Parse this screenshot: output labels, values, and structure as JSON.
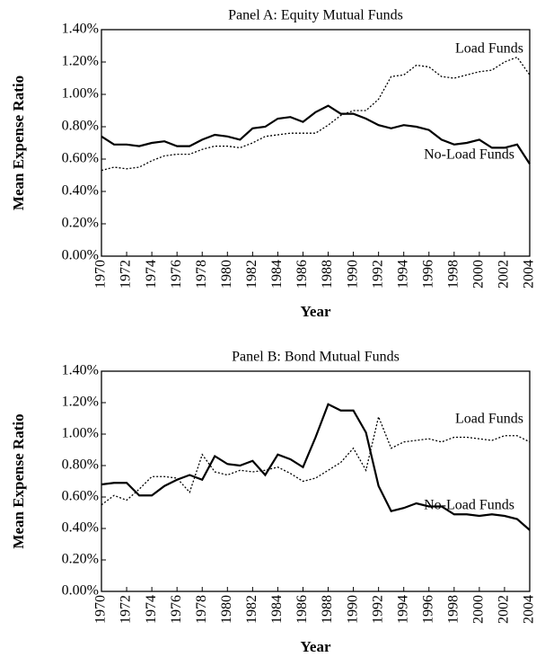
{
  "chart_data": [
    {
      "type": "line",
      "title": "Panel A: Equity Mutual Funds",
      "xlabel": "Year",
      "ylabel": "Mean Expense Ratio",
      "x": [
        1970,
        1971,
        1972,
        1973,
        1974,
        1975,
        1976,
        1977,
        1978,
        1979,
        1980,
        1981,
        1982,
        1983,
        1984,
        1985,
        1986,
        1987,
        1988,
        1989,
        1990,
        1991,
        1992,
        1993,
        1994,
        1995,
        1996,
        1997,
        1998,
        1999,
        2000,
        2001,
        2002,
        2003,
        2004
      ],
      "xlim": [
        1970,
        2004
      ],
      "xticks": [
        1970,
        1972,
        1974,
        1976,
        1978,
        1980,
        1982,
        1984,
        1986,
        1988,
        1990,
        1992,
        1994,
        1996,
        1998,
        2000,
        2002,
        2004
      ],
      "ylim": [
        0,
        1.4
      ],
      "yticks": [
        {
          "value": 0,
          "label": "0.00%"
        },
        {
          "value": 0.2,
          "label": "0.20%"
        },
        {
          "value": 0.4,
          "label": "0.40%"
        },
        {
          "value": 0.6,
          "label": "0.60%"
        },
        {
          "value": 0.8,
          "label": "0.80%"
        },
        {
          "value": 1.0,
          "label": "1.00%"
        },
        {
          "value": 1.2,
          "label": "1.20%"
        },
        {
          "value": 1.4,
          "label": "1.40%"
        }
      ],
      "series": [
        {
          "name": "Load Funds",
          "color": "#000000",
          "style": "dotted",
          "values": [
            0.53,
            0.55,
            0.54,
            0.55,
            0.59,
            0.62,
            0.63,
            0.63,
            0.66,
            0.68,
            0.68,
            0.67,
            0.7,
            0.74,
            0.75,
            0.76,
            0.76,
            0.76,
            0.81,
            0.87,
            0.9,
            0.9,
            0.97,
            1.11,
            1.12,
            1.18,
            1.17,
            1.11,
            1.1,
            1.12,
            1.14,
            1.15,
            1.2,
            1.23,
            1.12
          ]
        },
        {
          "name": "No-Load Funds",
          "color": "#000000",
          "style": "solid",
          "values": [
            0.74,
            0.69,
            0.69,
            0.68,
            0.7,
            0.71,
            0.68,
            0.68,
            0.72,
            0.75,
            0.74,
            0.72,
            0.79,
            0.8,
            0.85,
            0.86,
            0.83,
            0.89,
            0.93,
            0.88,
            0.88,
            0.85,
            0.81,
            0.79,
            0.81,
            0.8,
            0.78,
            0.72,
            0.69,
            0.7,
            0.72,
            0.67,
            0.67,
            0.69,
            0.57
          ]
        }
      ]
    },
    {
      "type": "line",
      "title": "Panel B: Bond Mutual Funds",
      "xlabel": "Year",
      "ylabel": "Mean Expense Ratio",
      "x": [
        1970,
        1971,
        1972,
        1973,
        1974,
        1975,
        1976,
        1977,
        1978,
        1979,
        1980,
        1981,
        1982,
        1983,
        1984,
        1985,
        1986,
        1987,
        1988,
        1989,
        1990,
        1991,
        1992,
        1993,
        1994,
        1995,
        1996,
        1997,
        1998,
        1999,
        2000,
        2001,
        2002,
        2003,
        2004
      ],
      "xlim": [
        1970,
        2004
      ],
      "xticks": [
        1970,
        1972,
        1974,
        1976,
        1978,
        1980,
        1982,
        1984,
        1986,
        1988,
        1990,
        1992,
        1994,
        1996,
        1998,
        2000,
        2002,
        2004
      ],
      "ylim": [
        0,
        1.4
      ],
      "yticks": [
        {
          "value": 0,
          "label": "0.00%"
        },
        {
          "value": 0.2,
          "label": "0.20%"
        },
        {
          "value": 0.4,
          "label": "0.40%"
        },
        {
          "value": 0.6,
          "label": "0.60%"
        },
        {
          "value": 0.8,
          "label": "0.80%"
        },
        {
          "value": 1.0,
          "label": "1.00%"
        },
        {
          "value": 1.2,
          "label": "1.20%"
        },
        {
          "value": 1.4,
          "label": "1.40%"
        }
      ],
      "series": [
        {
          "name": "Load Funds",
          "color": "#000000",
          "style": "dotted",
          "values": [
            0.55,
            0.61,
            0.58,
            0.65,
            0.73,
            0.73,
            0.72,
            0.63,
            0.87,
            0.76,
            0.74,
            0.77,
            0.76,
            0.77,
            0.79,
            0.75,
            0.7,
            0.72,
            0.77,
            0.82,
            0.91,
            0.77,
            1.11,
            0.91,
            0.95,
            0.96,
            0.97,
            0.95,
            0.98,
            0.98,
            0.97,
            0.96,
            0.99,
            0.99,
            0.95
          ]
        },
        {
          "name": "No-Load Funds",
          "color": "#000000",
          "style": "solid",
          "values": [
            0.68,
            0.69,
            0.69,
            0.61,
            0.61,
            0.67,
            0.71,
            0.74,
            0.71,
            0.86,
            0.81,
            0.8,
            0.83,
            0.74,
            0.87,
            0.84,
            0.79,
            0.98,
            1.19,
            1.15,
            1.15,
            1.01,
            0.67,
            0.51,
            0.53,
            0.56,
            0.54,
            0.54,
            0.49,
            0.49,
            0.48,
            0.49,
            0.48,
            0.46,
            0.39
          ]
        }
      ]
    }
  ]
}
